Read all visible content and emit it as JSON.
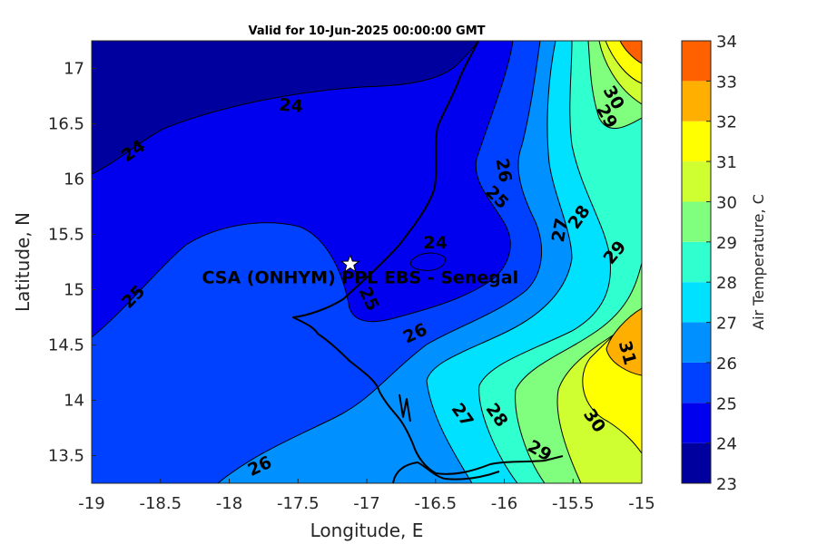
{
  "title": "Valid for 10-Jun-2025 00:00:00 GMT",
  "chart_data": {
    "type": "heatmap",
    "subtype": "filled-contour-map",
    "title": "Valid for 10-Jun-2025 00:00:00 GMT",
    "xlabel": "Longitude, E",
    "ylabel": "Latitude, N",
    "xlim": [
      -19,
      -15
    ],
    "ylim": [
      13.25,
      17.25
    ],
    "x_ticks": [
      "-19",
      "-18.5",
      "-18",
      "-17.5",
      "-17",
      "-16.5",
      "-16",
      "-15.5",
      "-15"
    ],
    "y_ticks": [
      "13.5",
      "14",
      "14.5",
      "15",
      "15.5",
      "16",
      "16.5",
      "17"
    ],
    "colorbar": {
      "label": "Air Temperature, C",
      "levels": [
        23,
        24,
        25,
        26,
        27,
        28,
        29,
        30,
        31,
        32,
        33,
        34
      ],
      "tick_labels": [
        "23",
        "24",
        "25",
        "26",
        "27",
        "28",
        "29",
        "30",
        "31",
        "32",
        "33",
        "34"
      ],
      "colors": [
        "#00009f",
        "#0000ef",
        "#0040ff",
        "#0090ff",
        "#00e0ff",
        "#30ffcf",
        "#80ff7f",
        "#cfff30",
        "#ffff00",
        "#ffaf00",
        "#ff6000",
        "#ff1000",
        "#af0000"
      ]
    },
    "contour_labels": [
      {
        "text": "24",
        "lon": -17.55,
        "lat": 16.67,
        "rot": 5
      },
      {
        "text": "24",
        "lon": -18.7,
        "lat": 16.26,
        "rot": -35
      },
      {
        "text": "24",
        "lon": -16.5,
        "lat": 15.43,
        "rot": 0
      },
      {
        "text": "25",
        "lon": -18.7,
        "lat": 14.94,
        "rot": -45
      },
      {
        "text": "25",
        "lon": -16.05,
        "lat": 15.84,
        "rot": 45
      },
      {
        "text": "25",
        "lon": -16.98,
        "lat": 14.92,
        "rot": 65
      },
      {
        "text": "26",
        "lon": -16.0,
        "lat": 16.08,
        "rot": 80
      },
      {
        "text": "26",
        "lon": -16.65,
        "lat": 14.61,
        "rot": -25
      },
      {
        "text": "26",
        "lon": -17.78,
        "lat": 13.41,
        "rot": -25
      },
      {
        "text": "27",
        "lon": -15.6,
        "lat": 15.54,
        "rot": -80
      },
      {
        "text": "27",
        "lon": -16.3,
        "lat": 13.87,
        "rot": 55
      },
      {
        "text": "28",
        "lon": -15.46,
        "lat": 15.66,
        "rot": -55
      },
      {
        "text": "28",
        "lon": -16.05,
        "lat": 13.87,
        "rot": 55
      },
      {
        "text": "29",
        "lon": -15.2,
        "lat": 15.34,
        "rot": -50
      },
      {
        "text": "29",
        "lon": -15.74,
        "lat": 13.55,
        "rot": 30
      },
      {
        "text": "29",
        "lon": -15.25,
        "lat": 16.57,
        "rot": 60
      },
      {
        "text": "30",
        "lon": -15.2,
        "lat": 16.74,
        "rot": 60
      },
      {
        "text": "30",
        "lon": -15.34,
        "lat": 13.82,
        "rot": 55
      },
      {
        "text": "31",
        "lon": -15.1,
        "lat": 14.43,
        "rot": 75
      }
    ],
    "site": {
      "name": "CSA (ONHYM) PPL EBS  - Senegal",
      "lon": -17.12,
      "lat": 15.23,
      "marker": "star"
    }
  }
}
